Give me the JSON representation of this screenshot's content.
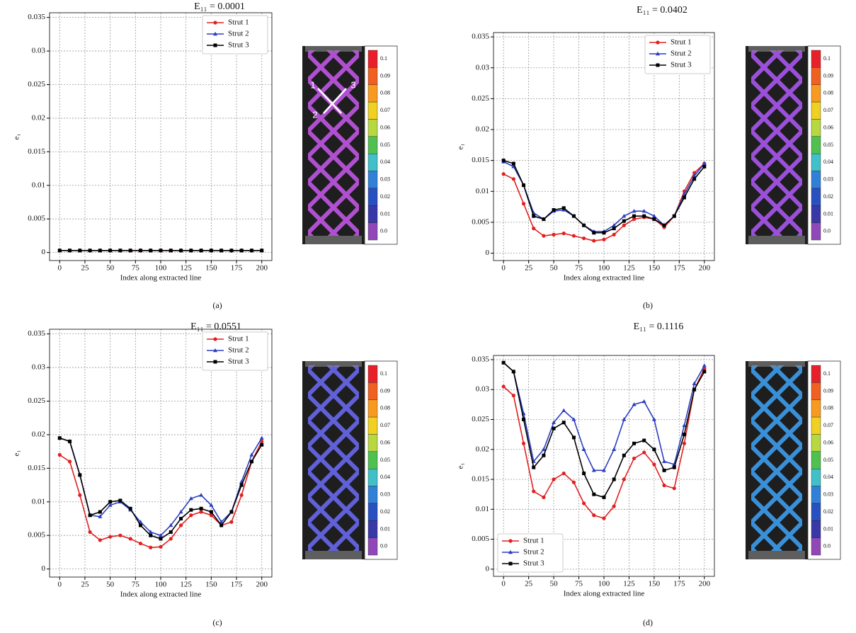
{
  "chart_data": [
    {
      "type": "line",
      "title": "E₁₁ = 0.0001",
      "caption": "(a)",
      "xlabel": "Index along extracted line",
      "ylabel": "e₁",
      "x": [
        0,
        10,
        20,
        30,
        40,
        50,
        60,
        70,
        80,
        90,
        100,
        110,
        120,
        130,
        140,
        150,
        160,
        170,
        180,
        190,
        200
      ],
      "series": [
        {
          "name": "Strut 1",
          "color": "#e02020",
          "marker": "circle",
          "values": [
            0.0003,
            0.0003,
            0.0003,
            0.0003,
            0.0003,
            0.0003,
            0.0003,
            0.0003,
            0.0003,
            0.0003,
            0.0003,
            0.0003,
            0.0003,
            0.0003,
            0.0003,
            0.0003,
            0.0003,
            0.0003,
            0.0003,
            0.0003,
            0.0003
          ]
        },
        {
          "name": "Strut 2",
          "color": "#2a3ec0",
          "marker": "triangle",
          "values": [
            0.0003,
            0.0003,
            0.0003,
            0.0003,
            0.0003,
            0.0003,
            0.0003,
            0.0003,
            0.0003,
            0.0003,
            0.0003,
            0.0003,
            0.0003,
            0.0003,
            0.0003,
            0.0003,
            0.0003,
            0.0003,
            0.0003,
            0.0003,
            0.0003
          ]
        },
        {
          "name": "Strut 3",
          "color": "#000000",
          "marker": "square",
          "values": [
            0.0003,
            0.0003,
            0.0003,
            0.0003,
            0.0003,
            0.0003,
            0.0003,
            0.0003,
            0.0003,
            0.0003,
            0.0003,
            0.0003,
            0.0003,
            0.0003,
            0.0003,
            0.0003,
            0.0003,
            0.0003,
            0.0003,
            0.0003,
            0.0003
          ]
        }
      ],
      "xlim": [
        -10,
        210
      ],
      "ylim": [
        -0.0012,
        0.0357
      ],
      "xticks": [
        0,
        25,
        50,
        75,
        100,
        125,
        150,
        175,
        200
      ],
      "yticks": [
        0,
        0.005,
        0.01,
        0.015,
        0.02,
        0.025,
        0.03,
        0.035
      ],
      "grid": true,
      "legend": "upper right"
    },
    {
      "type": "line",
      "title": "E₁₁ = 0.0402",
      "caption": "(b)",
      "xlabel": "Index along extracted line",
      "ylabel": "e₁",
      "x": [
        0,
        10,
        20,
        30,
        40,
        50,
        60,
        70,
        80,
        90,
        100,
        110,
        120,
        130,
        140,
        150,
        160,
        170,
        180,
        190,
        200
      ],
      "series": [
        {
          "name": "Strut 1",
          "color": "#e02020",
          "marker": "circle",
          "values": [
            0.0128,
            0.012,
            0.008,
            0.004,
            0.0028,
            0.003,
            0.0032,
            0.0028,
            0.0024,
            0.002,
            0.0022,
            0.003,
            0.0045,
            0.0055,
            0.0058,
            0.0055,
            0.0042,
            0.006,
            0.01,
            0.013,
            0.0145
          ]
        },
        {
          "name": "Strut 2",
          "color": "#2a3ec0",
          "marker": "triangle",
          "values": [
            0.0148,
            0.014,
            0.011,
            0.0065,
            0.0055,
            0.0068,
            0.007,
            0.006,
            0.0045,
            0.0035,
            0.0035,
            0.0045,
            0.006,
            0.0068,
            0.0068,
            0.006,
            0.0045,
            0.006,
            0.0095,
            0.0125,
            0.0145
          ]
        },
        {
          "name": "Strut 3",
          "color": "#000000",
          "marker": "square",
          "values": [
            0.015,
            0.0145,
            0.011,
            0.006,
            0.0055,
            0.007,
            0.0073,
            0.006,
            0.0045,
            0.0033,
            0.0033,
            0.004,
            0.0052,
            0.006,
            0.006,
            0.0055,
            0.0045,
            0.006,
            0.009,
            0.012,
            0.014
          ]
        }
      ],
      "xlim": [
        -10,
        210
      ],
      "ylim": [
        -0.0012,
        0.0357
      ],
      "xticks": [
        0,
        25,
        50,
        75,
        100,
        125,
        150,
        175,
        200
      ],
      "yticks": [
        0,
        0.005,
        0.01,
        0.015,
        0.02,
        0.025,
        0.03,
        0.035
      ],
      "grid": true,
      "legend": "upper right"
    },
    {
      "type": "line",
      "title": "E₁₁ = 0.0551",
      "caption": "(c)",
      "xlabel": "Index along extracted line",
      "ylabel": "e₁",
      "x": [
        0,
        10,
        20,
        30,
        40,
        50,
        60,
        70,
        80,
        90,
        100,
        110,
        120,
        130,
        140,
        150,
        160,
        170,
        180,
        190,
        200
      ],
      "series": [
        {
          "name": "Strut 1",
          "color": "#e02020",
          "marker": "circle",
          "values": [
            0.017,
            0.016,
            0.011,
            0.0055,
            0.0043,
            0.0048,
            0.005,
            0.0045,
            0.0038,
            0.0032,
            0.0033,
            0.0045,
            0.0065,
            0.008,
            0.0085,
            0.008,
            0.0065,
            0.007,
            0.011,
            0.016,
            0.019
          ]
        },
        {
          "name": "Strut 2",
          "color": "#2a3ec0",
          "marker": "triangle",
          "values": [
            0.0195,
            0.019,
            0.014,
            0.008,
            0.0078,
            0.0095,
            0.01,
            0.0088,
            0.007,
            0.0055,
            0.005,
            0.0065,
            0.0085,
            0.0105,
            0.011,
            0.0095,
            0.007,
            0.0085,
            0.013,
            0.017,
            0.0195
          ]
        },
        {
          "name": "Strut 3",
          "color": "#000000",
          "marker": "square",
          "values": [
            0.0195,
            0.019,
            0.014,
            0.008,
            0.0085,
            0.01,
            0.0102,
            0.009,
            0.0065,
            0.005,
            0.0045,
            0.0055,
            0.0075,
            0.0088,
            0.009,
            0.0085,
            0.0065,
            0.0085,
            0.0125,
            0.016,
            0.0185
          ]
        }
      ],
      "xlim": [
        -10,
        210
      ],
      "ylim": [
        -0.0012,
        0.0357
      ],
      "xticks": [
        0,
        25,
        50,
        75,
        100,
        125,
        150,
        175,
        200
      ],
      "yticks": [
        0,
        0.005,
        0.01,
        0.015,
        0.02,
        0.025,
        0.03,
        0.035
      ],
      "grid": true,
      "legend": "upper right"
    },
    {
      "type": "line",
      "title": "E₁₁ = 0.1116",
      "caption": "(d)",
      "xlabel": "Index along extracted line",
      "ylabel": "e₁",
      "x": [
        0,
        10,
        20,
        30,
        40,
        50,
        60,
        70,
        80,
        90,
        100,
        110,
        120,
        130,
        140,
        150,
        160,
        170,
        180,
        190,
        200
      ],
      "series": [
        {
          "name": "Strut 1",
          "color": "#e02020",
          "marker": "circle",
          "values": [
            0.0305,
            0.029,
            0.021,
            0.013,
            0.012,
            0.015,
            0.016,
            0.0145,
            0.011,
            0.009,
            0.0085,
            0.0105,
            0.015,
            0.0185,
            0.0195,
            0.0175,
            0.014,
            0.0135,
            0.021,
            0.03,
            0.0335
          ]
        },
        {
          "name": "Strut 2",
          "color": "#2a3ec0",
          "marker": "triangle",
          "values": [
            0.0345,
            0.033,
            0.026,
            0.018,
            0.02,
            0.0245,
            0.0265,
            0.025,
            0.02,
            0.0165,
            0.0165,
            0.02,
            0.025,
            0.0275,
            0.028,
            0.025,
            0.018,
            0.0175,
            0.024,
            0.031,
            0.034
          ]
        },
        {
          "name": "Strut 3",
          "color": "#000000",
          "marker": "square",
          "values": [
            0.0345,
            0.033,
            0.025,
            0.017,
            0.019,
            0.0235,
            0.0245,
            0.022,
            0.016,
            0.0125,
            0.012,
            0.015,
            0.019,
            0.021,
            0.0215,
            0.02,
            0.0165,
            0.017,
            0.0225,
            0.03,
            0.033
          ]
        }
      ],
      "xlim": [
        -10,
        210
      ],
      "ylim": [
        -0.0012,
        0.0357
      ],
      "xticks": [
        0,
        25,
        50,
        75,
        100,
        125,
        150,
        175,
        200
      ],
      "yticks": [
        0,
        0.005,
        0.01,
        0.015,
        0.02,
        0.025,
        0.03,
        0.035
      ],
      "grid": true,
      "legend": "lower left"
    }
  ],
  "colorbar": {
    "labels": [
      "0.1",
      "0.09",
      "0.08",
      "0.07",
      "0.06",
      "0.05",
      "0.04",
      "0.03",
      "0.02",
      "0.01",
      "0.0"
    ],
    "colors": [
      "#e8202a",
      "#f06020",
      "#f89a20",
      "#f0d020",
      "#b8d840",
      "#50c050",
      "#40c0c8",
      "#3080d8",
      "#2850c0",
      "#3838a8",
      "#9048b8"
    ]
  },
  "strut_labels": [
    "1",
    "2",
    "3"
  ]
}
